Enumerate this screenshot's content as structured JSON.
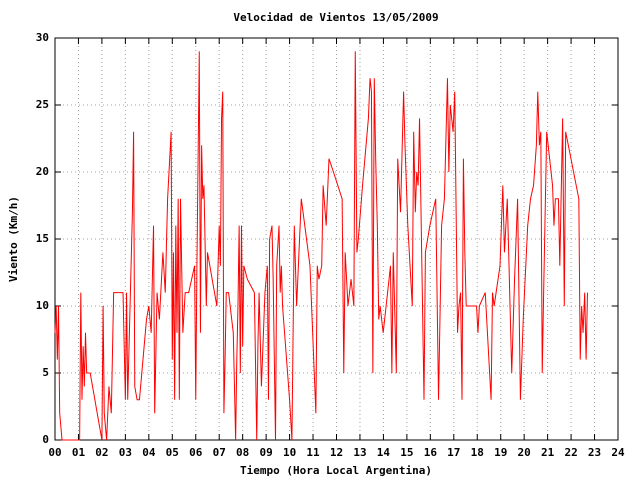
{
  "chart_data": {
    "type": "line",
    "title": "Velocidad de Vientos 13/05/2009",
    "x_label": "Tiempo (Hora Local Argentina)",
    "y_label": "Viento (Km/h)",
    "color": "#ff0000",
    "grid": true,
    "xlim": [
      0,
      24
    ],
    "ylim": [
      0,
      30
    ],
    "xticks": [
      {
        "value": 0,
        "label": "00"
      },
      {
        "value": 1,
        "label": "01"
      },
      {
        "value": 2,
        "label": "02"
      },
      {
        "value": 3,
        "label": "03"
      },
      {
        "value": 4,
        "label": "04"
      },
      {
        "value": 5,
        "label": "05"
      },
      {
        "value": 6,
        "label": "06"
      },
      {
        "value": 7,
        "label": "07"
      },
      {
        "value": 8,
        "label": "08"
      },
      {
        "value": 9,
        "label": "09"
      },
      {
        "value": 10,
        "label": "10"
      },
      {
        "value": 11,
        "label": "11"
      },
      {
        "value": 12,
        "label": "12"
      },
      {
        "value": 13,
        "label": "13"
      },
      {
        "value": 14,
        "label": "14"
      },
      {
        "value": 15,
        "label": "15"
      },
      {
        "value": 16,
        "label": "16"
      },
      {
        "value": 17,
        "label": "17"
      },
      {
        "value": 18,
        "label": "18"
      },
      {
        "value": 19,
        "label": "19"
      },
      {
        "value": 20,
        "label": "20"
      },
      {
        "value": 21,
        "label": "21"
      },
      {
        "value": 22,
        "label": "22"
      },
      {
        "value": 23,
        "label": "23"
      },
      {
        "value": 24,
        "label": "24"
      }
    ],
    "yticks": [
      0,
      5,
      10,
      15,
      20,
      25,
      30
    ],
    "x": [
      0,
      0.05,
      0.1,
      0.15,
      0.2,
      0.3,
      0.5,
      1.05,
      1.1,
      1.15,
      1.2,
      1.25,
      1.3,
      1.35,
      1.5,
      1.8,
      2.0,
      2.05,
      2.1,
      2.2,
      2.3,
      2.4,
      2.5,
      2.9,
      3.0,
      3.05,
      3.1,
      3.3,
      3.35,
      3.4,
      3.5,
      3.6,
      3.9,
      4.0,
      4.1,
      4.2,
      4.25,
      4.35,
      4.45,
      4.6,
      4.7,
      4.8,
      4.95,
      5.0,
      5.05,
      5.1,
      5.15,
      5.2,
      5.25,
      5.3,
      5.35,
      5.45,
      5.55,
      5.7,
      5.95,
      6.0,
      6.05,
      6.15,
      6.2,
      6.25,
      6.3,
      6.35,
      6.45,
      6.5,
      6.9,
      7.0,
      7.05,
      7.1,
      7.15,
      7.2,
      7.25,
      7.3,
      7.4,
      7.6,
      7.7,
      7.75,
      7.8,
      7.85,
      7.9,
      7.95,
      8.0,
      8.05,
      8.2,
      8.5,
      8.6,
      8.65,
      8.7,
      8.8,
      8.95,
      9.05,
      9.1,
      9.15,
      9.25,
      9.3,
      9.4,
      9.45,
      9.55,
      9.6,
      9.65,
      9.7,
      10.0,
      10.1,
      10.2,
      10.3,
      10.5,
      10.87,
      11.12,
      11.18,
      11.25,
      11.37,
      11.43,
      11.56,
      11.68,
      11.87,
      12.24,
      12.31,
      12.37,
      12.49,
      12.62,
      12.74,
      12.8,
      12.87,
      12.93,
      13.11,
      13.36,
      13.43,
      13.49,
      13.55,
      13.61,
      13.67,
      13.74,
      13.8,
      13.86,
      13.99,
      14.24,
      14.3,
      14.36,
      14.42,
      14.55,
      14.61,
      14.73,
      14.86,
      14.92,
      15.04,
      15.23,
      15.29,
      15.36,
      15.42,
      15.48,
      15.54,
      15.73,
      15.79,
      15.98,
      16.23,
      16.35,
      16.48,
      16.6,
      16.73,
      16.79,
      16.85,
      16.97,
      17.04,
      17.16,
      17.22,
      17.29,
      17.35,
      17.41,
      17.47,
      17.53,
      17.72,
      17.97,
      18.03,
      18.09,
      18.34,
      18.59,
      18.65,
      18.72,
      18.97,
      19.09,
      19.16,
      19.28,
      19.34,
      19.47,
      19.59,
      19.72,
      19.84,
      19.96,
      20.15,
      20.27,
      20.4,
      20.52,
      20.58,
      20.65,
      20.71,
      20.77,
      20.83,
      20.96,
      21.21,
      21.27,
      21.33,
      21.46,
      21.52,
      21.64,
      21.71,
      21.77,
      22.33,
      22.39,
      22.45,
      22.51,
      22.58,
      22.64,
      22.7
    ],
    "values": [
      8,
      10,
      6,
      10,
      2,
      0,
      0,
      0,
      11,
      3,
      7,
      4,
      8,
      5,
      5,
      2,
      0,
      10,
      2,
      0,
      4,
      2,
      11,
      11,
      3,
      11,
      3,
      17,
      23,
      4,
      3,
      3,
      9,
      10,
      8,
      16,
      2,
      11,
      9,
      14,
      11,
      18,
      23,
      6,
      14,
      3,
      16,
      8,
      18,
      3,
      18,
      8,
      11,
      11,
      13,
      3,
      13,
      29,
      8,
      22,
      18,
      19,
      10,
      14,
      10,
      16,
      13,
      24,
      26,
      2,
      6,
      11,
      11,
      8,
      0,
      6,
      10,
      16,
      5,
      16,
      7,
      13,
      12,
      11,
      0,
      7,
      11,
      4,
      11,
      13,
      3,
      15,
      16,
      12,
      0,
      13,
      16,
      11,
      13,
      10,
      3,
      0,
      16,
      10,
      18,
      13,
      2,
      13,
      12,
      13,
      19,
      16,
      21,
      20,
      18,
      5,
      14,
      10,
      12,
      10,
      29,
      14,
      15,
      19,
      24,
      27,
      26,
      5,
      27,
      21,
      16,
      9,
      10,
      8,
      12,
      13,
      5,
      14,
      5,
      21,
      17,
      26,
      22,
      16,
      10,
      23,
      17,
      20,
      19,
      24,
      3,
      14,
      16,
      18,
      3,
      16,
      18,
      27,
      20,
      25,
      23,
      26,
      8,
      10,
      11,
      3,
      21,
      14,
      10,
      10,
      10,
      8,
      10,
      11,
      3,
      11,
      10,
      13,
      19,
      14,
      18,
      14,
      5,
      12,
      18,
      3,
      9,
      16,
      18,
      19,
      22,
      26,
      22,
      23,
      5,
      11,
      23,
      19,
      16,
      18,
      18,
      13,
      24,
      10,
      23,
      18,
      6,
      10,
      8,
      11,
      6,
      11
    ]
  }
}
